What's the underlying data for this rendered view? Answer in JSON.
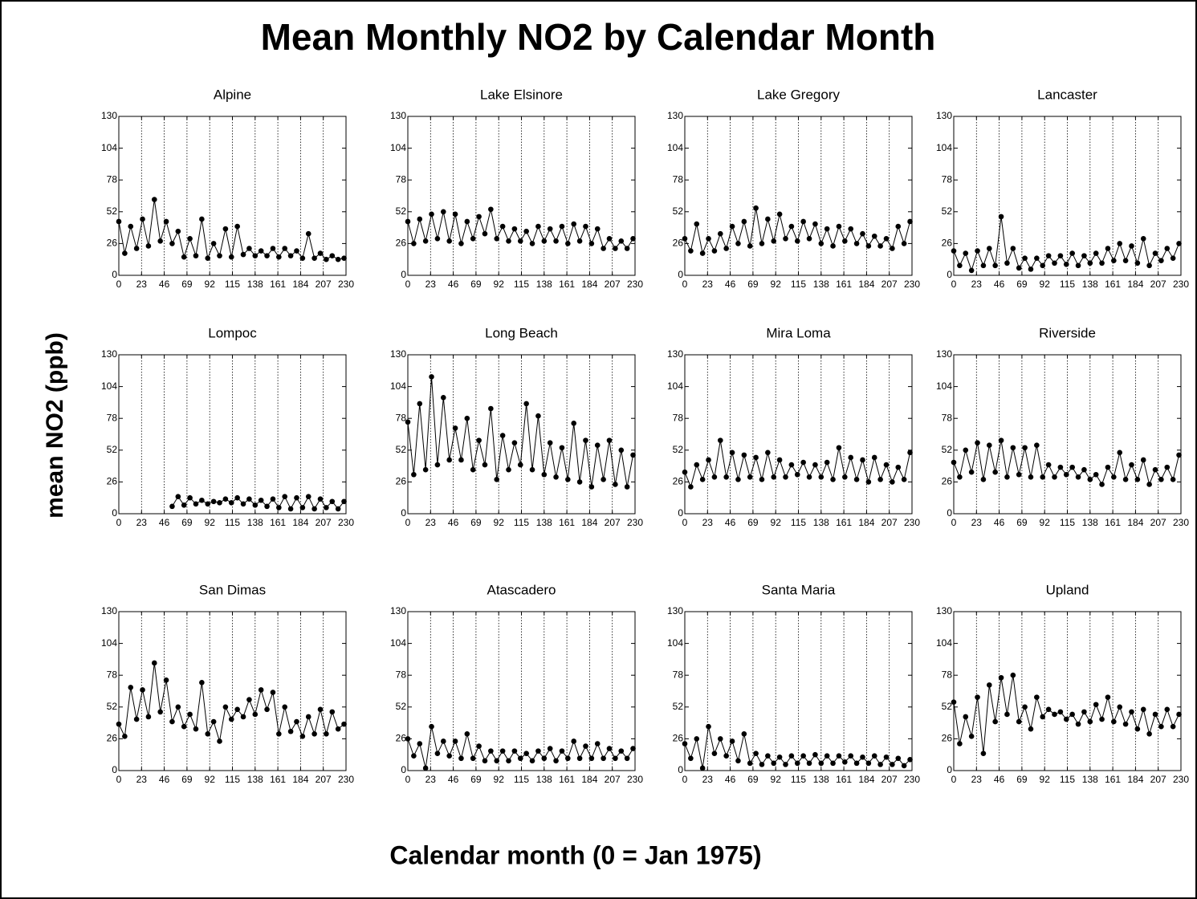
{
  "title": "Mean Monthly NO2 by Calendar Month",
  "y_label": "mean NO2 (ppb)",
  "x_label": "Calendar month (0 = Jan 1975)",
  "chart_data": [
    {
      "type": "line",
      "title": "Alpine",
      "color": "#000000",
      "grid": true,
      "xlim": [
        0,
        230
      ],
      "ylim": [
        0,
        130
      ],
      "xticks": [
        0,
        23,
        46,
        69,
        92,
        115,
        138,
        161,
        184,
        207,
        230
      ],
      "yticks": [
        0,
        26,
        52,
        78,
        104,
        130
      ],
      "x": [
        0,
        6,
        12,
        18,
        24,
        30,
        36,
        42,
        48,
        54,
        60,
        66,
        72,
        78,
        84,
        90,
        96,
        102,
        108,
        114,
        120,
        126,
        132,
        138,
        144,
        150,
        156,
        162,
        168,
        174,
        180,
        186,
        192,
        198,
        204,
        210,
        216,
        222,
        228
      ],
      "values": [
        44,
        18,
        40,
        22,
        46,
        24,
        62,
        28,
        44,
        26,
        36,
        15,
        30,
        16,
        46,
        14,
        26,
        16,
        38,
        15,
        40,
        17,
        22,
        16,
        20,
        16,
        22,
        15,
        22,
        16,
        20,
        14,
        34,
        14,
        18,
        13,
        16,
        13,
        14
      ]
    },
    {
      "type": "line",
      "title": "Lake Elsinore",
      "color": "#000000",
      "grid": true,
      "xlim": [
        0,
        230
      ],
      "ylim": [
        0,
        130
      ],
      "xticks": [
        0,
        23,
        46,
        69,
        92,
        115,
        138,
        161,
        184,
        207,
        230
      ],
      "yticks": [
        0,
        26,
        52,
        78,
        104,
        130
      ],
      "x": [
        0,
        6,
        12,
        18,
        24,
        30,
        36,
        42,
        48,
        54,
        60,
        66,
        72,
        78,
        84,
        90,
        96,
        102,
        108,
        114,
        120,
        126,
        132,
        138,
        144,
        150,
        156,
        162,
        168,
        174,
        180,
        186,
        192,
        198,
        204,
        210,
        216,
        222,
        228
      ],
      "values": [
        44,
        26,
        46,
        28,
        50,
        30,
        52,
        28,
        50,
        26,
        44,
        30,
        48,
        34,
        54,
        30,
        40,
        28,
        38,
        28,
        36,
        26,
        40,
        28,
        38,
        28,
        40,
        26,
        42,
        28,
        40,
        26,
        38,
        22,
        30,
        22,
        28,
        22,
        30
      ]
    },
    {
      "type": "line",
      "title": "Lake Gregory",
      "color": "#000000",
      "grid": true,
      "xlim": [
        0,
        230
      ],
      "ylim": [
        0,
        130
      ],
      "xticks": [
        0,
        23,
        46,
        69,
        92,
        115,
        138,
        161,
        184,
        207,
        230
      ],
      "yticks": [
        0,
        26,
        52,
        78,
        104,
        130
      ],
      "x": [
        0,
        6,
        12,
        18,
        24,
        30,
        36,
        42,
        48,
        54,
        60,
        66,
        72,
        78,
        84,
        90,
        96,
        102,
        108,
        114,
        120,
        126,
        132,
        138,
        144,
        150,
        156,
        162,
        168,
        174,
        180,
        186,
        192,
        198,
        204,
        210,
        216,
        222,
        228
      ],
      "values": [
        30,
        20,
        42,
        18,
        30,
        20,
        34,
        22,
        40,
        26,
        44,
        24,
        55,
        26,
        46,
        28,
        50,
        30,
        40,
        28,
        44,
        30,
        42,
        26,
        38,
        24,
        40,
        28,
        38,
        26,
        34,
        24,
        32,
        24,
        30,
        22,
        40,
        26,
        44
      ]
    },
    {
      "type": "line",
      "title": "Lancaster",
      "color": "#000000",
      "grid": true,
      "xlim": [
        0,
        230
      ],
      "ylim": [
        0,
        130
      ],
      "xticks": [
        0,
        23,
        46,
        69,
        92,
        115,
        138,
        161,
        184,
        207,
        230
      ],
      "yticks": [
        0,
        26,
        52,
        78,
        104,
        130
      ],
      "x": [
        0,
        6,
        12,
        18,
        24,
        30,
        36,
        42,
        48,
        54,
        60,
        66,
        72,
        78,
        84,
        90,
        96,
        102,
        108,
        114,
        120,
        126,
        132,
        138,
        144,
        150,
        156,
        162,
        168,
        174,
        180,
        186,
        192,
        198,
        204,
        210,
        216,
        222,
        228
      ],
      "values": [
        20,
        8,
        18,
        4,
        20,
        8,
        22,
        8,
        48,
        10,
        22,
        6,
        14,
        5,
        14,
        8,
        16,
        10,
        16,
        9,
        18,
        8,
        16,
        10,
        18,
        10,
        22,
        12,
        26,
        12,
        24,
        10,
        30,
        8,
        18,
        12,
        22,
        14,
        26
      ]
    },
    {
      "type": "line",
      "title": "Lompoc",
      "color": "#000000",
      "grid": true,
      "xlim": [
        0,
        230
      ],
      "ylim": [
        0,
        130
      ],
      "xticks": [
        0,
        23,
        46,
        69,
        92,
        115,
        138,
        161,
        184,
        207,
        230
      ],
      "yticks": [
        0,
        26,
        52,
        78,
        104,
        130
      ],
      "x": [
        54,
        60,
        66,
        72,
        78,
        84,
        90,
        96,
        102,
        108,
        114,
        120,
        126,
        132,
        138,
        144,
        150,
        156,
        162,
        168,
        174,
        180,
        186,
        192,
        198,
        204,
        210,
        216,
        222,
        228
      ],
      "values": [
        6,
        14,
        7,
        13,
        8,
        11,
        8,
        10,
        9,
        12,
        9,
        13,
        8,
        12,
        7,
        11,
        6,
        12,
        5,
        14,
        4,
        13,
        5,
        14,
        4,
        12,
        5,
        10,
        4,
        10
      ]
    },
    {
      "type": "line",
      "title": "Long Beach",
      "color": "#000000",
      "grid": true,
      "xlim": [
        0,
        230
      ],
      "ylim": [
        0,
        130
      ],
      "xticks": [
        0,
        23,
        46,
        69,
        92,
        115,
        138,
        161,
        184,
        207,
        230
      ],
      "yticks": [
        0,
        26,
        52,
        78,
        104,
        130
      ],
      "x": [
        0,
        6,
        12,
        18,
        24,
        30,
        36,
        42,
        48,
        54,
        60,
        66,
        72,
        78,
        84,
        90,
        96,
        102,
        108,
        114,
        120,
        126,
        132,
        138,
        144,
        150,
        156,
        162,
        168,
        174,
        180,
        186,
        192,
        198,
        204,
        210,
        216,
        222,
        228
      ],
      "values": [
        75,
        32,
        90,
        36,
        112,
        40,
        95,
        44,
        70,
        44,
        78,
        36,
        60,
        40,
        86,
        28,
        64,
        36,
        58,
        40,
        90,
        36,
        80,
        32,
        58,
        30,
        54,
        28,
        74,
        26,
        60,
        22,
        56,
        28,
        60,
        24,
        52,
        22,
        48
      ]
    },
    {
      "type": "line",
      "title": "Mira Loma",
      "color": "#000000",
      "grid": true,
      "xlim": [
        0,
        230
      ],
      "ylim": [
        0,
        130
      ],
      "xticks": [
        0,
        23,
        46,
        69,
        92,
        115,
        138,
        161,
        184,
        207,
        230
      ],
      "yticks": [
        0,
        26,
        52,
        78,
        104,
        130
      ],
      "x": [
        0,
        6,
        12,
        18,
        24,
        30,
        36,
        42,
        48,
        54,
        60,
        66,
        72,
        78,
        84,
        90,
        96,
        102,
        108,
        114,
        120,
        126,
        132,
        138,
        144,
        150,
        156,
        162,
        168,
        174,
        180,
        186,
        192,
        198,
        204,
        210,
        216,
        222,
        228
      ],
      "values": [
        34,
        22,
        40,
        28,
        44,
        30,
        60,
        30,
        50,
        28,
        48,
        30,
        46,
        28,
        50,
        30,
        44,
        30,
        40,
        32,
        42,
        30,
        40,
        30,
        42,
        28,
        54,
        30,
        46,
        28,
        44,
        26,
        46,
        28,
        40,
        26,
        38,
        28,
        50
      ]
    },
    {
      "type": "line",
      "title": "Riverside",
      "color": "#000000",
      "grid": true,
      "xlim": [
        0,
        230
      ],
      "ylim": [
        0,
        130
      ],
      "xticks": [
        0,
        23,
        46,
        69,
        92,
        115,
        138,
        161,
        184,
        207,
        230
      ],
      "yticks": [
        0,
        26,
        52,
        78,
        104,
        130
      ],
      "x": [
        0,
        6,
        12,
        18,
        24,
        30,
        36,
        42,
        48,
        54,
        60,
        66,
        72,
        78,
        84,
        90,
        96,
        102,
        108,
        114,
        120,
        126,
        132,
        138,
        144,
        150,
        156,
        162,
        168,
        174,
        180,
        186,
        192,
        198,
        204,
        210,
        216,
        222,
        228
      ],
      "values": [
        42,
        30,
        52,
        34,
        58,
        28,
        56,
        34,
        60,
        30,
        54,
        32,
        54,
        30,
        56,
        30,
        40,
        30,
        38,
        32,
        38,
        30,
        36,
        28,
        32,
        24,
        38,
        30,
        50,
        28,
        40,
        28,
        44,
        24,
        36,
        28,
        38,
        28,
        48
      ]
    },
    {
      "type": "line",
      "title": "San Dimas",
      "color": "#000000",
      "grid": true,
      "xlim": [
        0,
        230
      ],
      "ylim": [
        0,
        130
      ],
      "xticks": [
        0,
        23,
        46,
        69,
        92,
        115,
        138,
        161,
        184,
        207,
        230
      ],
      "yticks": [
        0,
        26,
        52,
        78,
        104,
        130
      ],
      "x": [
        0,
        6,
        12,
        18,
        24,
        30,
        36,
        42,
        48,
        54,
        60,
        66,
        72,
        78,
        84,
        90,
        96,
        102,
        108,
        114,
        120,
        126,
        132,
        138,
        144,
        150,
        156,
        162,
        168,
        174,
        180,
        186,
        192,
        198,
        204,
        210,
        216,
        222,
        228
      ],
      "values": [
        38,
        28,
        68,
        42,
        66,
        44,
        88,
        48,
        74,
        40,
        52,
        36,
        46,
        34,
        72,
        30,
        40,
        24,
        52,
        42,
        50,
        44,
        58,
        46,
        66,
        50,
        64,
        30,
        52,
        32,
        40,
        28,
        44,
        30,
        50,
        30,
        48,
        34,
        38
      ]
    },
    {
      "type": "line",
      "title": "Atascadero",
      "color": "#000000",
      "grid": true,
      "xlim": [
        0,
        230
      ],
      "ylim": [
        0,
        130
      ],
      "xticks": [
        0,
        23,
        46,
        69,
        92,
        115,
        138,
        161,
        184,
        207,
        230
      ],
      "yticks": [
        0,
        26,
        52,
        78,
        104,
        130
      ],
      "x": [
        0,
        6,
        12,
        18,
        24,
        30,
        36,
        42,
        48,
        54,
        60,
        66,
        72,
        78,
        84,
        90,
        96,
        102,
        108,
        114,
        120,
        126,
        132,
        138,
        144,
        150,
        156,
        162,
        168,
        174,
        180,
        186,
        192,
        198,
        204,
        210,
        216,
        222,
        228
      ],
      "values": [
        26,
        12,
        22,
        2,
        36,
        14,
        24,
        12,
        24,
        10,
        30,
        10,
        20,
        8,
        16,
        8,
        16,
        8,
        16,
        10,
        14,
        8,
        16,
        10,
        18,
        8,
        16,
        10,
        24,
        10,
        20,
        10,
        22,
        10,
        18,
        10,
        16,
        10,
        18
      ]
    },
    {
      "type": "line",
      "title": "Santa Maria",
      "color": "#000000",
      "grid": true,
      "xlim": [
        0,
        230
      ],
      "ylim": [
        0,
        130
      ],
      "xticks": [
        0,
        23,
        46,
        69,
        92,
        115,
        138,
        161,
        184,
        207,
        230
      ],
      "yticks": [
        0,
        26,
        52,
        78,
        104,
        130
      ],
      "x": [
        0,
        6,
        12,
        18,
        24,
        30,
        36,
        42,
        48,
        54,
        60,
        66,
        72,
        78,
        84,
        90,
        96,
        102,
        108,
        114,
        120,
        126,
        132,
        138,
        144,
        150,
        156,
        162,
        168,
        174,
        180,
        186,
        192,
        198,
        204,
        210,
        216,
        222,
        228
      ],
      "values": [
        22,
        10,
        26,
        2,
        36,
        14,
        26,
        12,
        24,
        8,
        30,
        6,
        14,
        5,
        12,
        6,
        11,
        5,
        12,
        6,
        12,
        6,
        13,
        6,
        12,
        6,
        12,
        7,
        12,
        6,
        11,
        6,
        12,
        5,
        11,
        5,
        10,
        4,
        9
      ]
    },
    {
      "type": "line",
      "title": "Upland",
      "color": "#000000",
      "grid": true,
      "xlim": [
        0,
        230
      ],
      "ylim": [
        0,
        130
      ],
      "xticks": [
        0,
        23,
        46,
        69,
        92,
        115,
        138,
        161,
        184,
        207,
        230
      ],
      "yticks": [
        0,
        26,
        52,
        78,
        104,
        130
      ],
      "x": [
        0,
        6,
        12,
        18,
        24,
        30,
        36,
        42,
        48,
        54,
        60,
        66,
        72,
        78,
        84,
        90,
        96,
        102,
        108,
        114,
        120,
        126,
        132,
        138,
        144,
        150,
        156,
        162,
        168,
        174,
        180,
        186,
        192,
        198,
        204,
        210,
        216,
        222,
        228
      ],
      "values": [
        56,
        22,
        44,
        28,
        60,
        14,
        70,
        40,
        76,
        46,
        78,
        40,
        52,
        34,
        60,
        44,
        50,
        46,
        48,
        42,
        46,
        38,
        48,
        40,
        54,
        42,
        60,
        40,
        52,
        38,
        48,
        34,
        50,
        30,
        46,
        36,
        50,
        36,
        46
      ]
    }
  ]
}
